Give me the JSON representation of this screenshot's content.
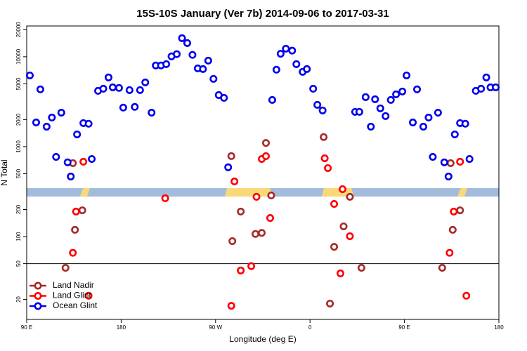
{
  "chart_data": {
    "type": "scatter",
    "title": "15S-10S January (Ver 7b)   2014-09-06 to 2017-03-31",
    "x_label": "Longitude (deg E)",
    "y_label": "N Total",
    "log_y": true,
    "xlim": [
      90,
      540
    ],
    "ylim": [
      12,
      22000
    ],
    "xticks": [
      {
        "value": 90,
        "label": "90 E"
      },
      180,
      {
        "value": 270,
        "label": "90 W"
      },
      {
        "value": 360,
        "label": "0"
      },
      {
        "value": 450,
        "label": "90 E"
      },
      {
        "value": 540,
        "label": "180"
      }
    ],
    "yticks": [
      20,
      50,
      100,
      200,
      500,
      1000,
      2000,
      5000,
      10000,
      20000
    ],
    "hline": 50,
    "legend": "bottomleft",
    "series": [
      {
        "name": "Land Nadir",
        "color": "#a52a2a",
        "x": [
          127,
          134,
          136,
          143,
          285,
          286,
          294,
          308,
          314,
          318,
          323,
          373,
          379,
          383,
          392,
          398,
          409,
          486,
          494,
          496,
          503
        ],
        "values": [
          45,
          656,
          119,
          196,
          785,
          89,
          190,
          107,
          110,
          1100,
          287,
          1280,
          18,
          77,
          130,
          277,
          45,
          45,
          656,
          119,
          196
        ]
      },
      {
        "name": "Land Glint",
        "color": "#ff0000",
        "x": [
          134,
          137,
          144,
          149,
          222,
          288,
          294,
          304,
          309,
          314,
          318,
          322,
          285,
          374,
          377,
          383,
          389,
          391,
          398,
          493,
          497,
          503,
          509
        ],
        "values": [
          66,
          190,
          680,
          22,
          267,
          411,
          42,
          47,
          277,
          730,
          785,
          161,
          17,
          743,
          578,
          231,
          39,
          337,
          101,
          66,
          190,
          680,
          22
        ]
      },
      {
        "name": "Ocean Glint",
        "color": "#0000ee",
        "x": [
          93,
          99,
          103,
          109,
          114,
          118,
          123,
          129,
          132,
          138,
          144,
          149,
          152,
          158,
          163,
          168,
          172,
          178,
          182,
          188,
          193,
          198,
          203,
          209,
          213,
          218,
          223,
          228,
          233,
          238,
          243,
          248,
          253,
          258,
          263,
          268,
          273,
          278,
          282,
          324,
          328,
          332,
          337,
          343,
          347,
          353,
          357,
          363,
          367,
          372,
          403,
          407,
          413,
          418,
          422,
          427,
          432,
          437,
          442,
          448,
          452,
          458,
          462,
          468,
          473,
          477,
          482,
          488,
          492,
          498,
          503,
          508,
          512,
          518,
          523,
          528,
          532,
          537
        ],
        "values": [
          6200,
          1860,
          4340,
          1670,
          2110,
          770,
          2390,
          670,
          466,
          1370,
          1830,
          1800,
          730,
          4180,
          4410,
          5890,
          4570,
          4500,
          2720,
          4260,
          2770,
          4260,
          5190,
          2390,
          8000,
          8000,
          8280,
          10100,
          10700,
          16100,
          14200,
          10500,
          7430,
          7300,
          9060,
          5680,
          3750,
          3490,
          590,
          3310,
          7180,
          10800,
          12300,
          11700,
          8280,
          6800,
          7300,
          4410,
          2920,
          2530,
          2440,
          2440,
          3560,
          1670,
          3370,
          2670,
          2190,
          3310,
          3820,
          4110,
          6200,
          1860,
          4340,
          1670,
          2110,
          770,
          2390,
          670,
          466,
          1370,
          1830,
          1800,
          730,
          4180,
          4410,
          5890,
          4570,
          4570
        ]
      }
    ]
  }
}
